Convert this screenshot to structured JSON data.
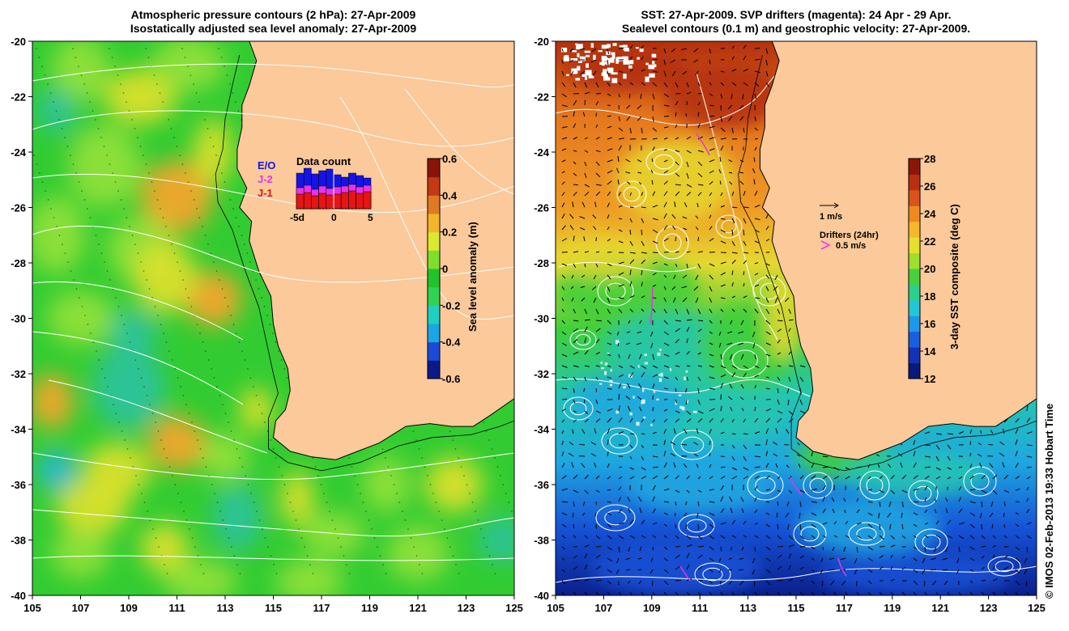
{
  "left_panel": {
    "title_line1": "Atmospheric pressure contours (2 hPa): 27-Apr-2009",
    "title_line2": "Isostatically adjusted sea level anomaly: 27-Apr-2009",
    "colorbar": {
      "label": "Sea level anomaly (m)",
      "ticks": [
        "0.6",
        "0.4",
        "0.2",
        "0",
        "-0.2",
        "-0.4",
        "-0.6"
      ],
      "colors": [
        "#0b1a8a",
        "#1a4ad8",
        "#19a7e6",
        "#1fd0c0",
        "#2fd455",
        "#22c32a",
        "#7fde2b",
        "#d8e92e",
        "#f3b52a",
        "#e07a22",
        "#c23a14",
        "#8a1408"
      ]
    },
    "data_count": {
      "title": "Data count",
      "legend": [
        "E/O",
        "J-2",
        "J-1"
      ],
      "legend_colors": [
        "#1414e6",
        "#e633e6",
        "#e61414"
      ],
      "xticks": [
        "-5d",
        "0",
        "5"
      ]
    },
    "ocean_colors": {
      "base": "#32cc32",
      "light": "#8fe03a",
      "yellow": "#d9e02d",
      "orange": "#f2a52a",
      "teal": "#2dc39a",
      "cyan": "#27b7d6"
    }
  },
  "right_panel": {
    "title_line1": "SST: 27-Apr-2009. SVP drifters (magenta): 24 Apr - 29 Apr.",
    "title_line2": "Sealevel contours (0.1 m) and geostrophic velocity: 27-Apr-2009.",
    "colorbar": {
      "label": "3-day SST composite (deg C)",
      "ticks": [
        "28",
        "26",
        "24",
        "22",
        "20",
        "18",
        "16",
        "14",
        "12"
      ],
      "colors": [
        "#0a1a7a",
        "#1232b8",
        "#1a5ee0",
        "#1c98e8",
        "#22c7d4",
        "#2bd08c",
        "#46d23e",
        "#9ddf2c",
        "#e6e02c",
        "#f4b82a",
        "#ee8a1e",
        "#d9531a",
        "#b8300f",
        "#8c1708"
      ]
    },
    "legend_velocity": "1 m/s",
    "legend_drifters_title": "Drifters (24hr)",
    "legend_drifters_scale": "0.5 m/s",
    "sst_colors": {
      "north": "#b3300f",
      "orange": "#e6781e",
      "yellow": "#e6d830",
      "green": "#3fcf3a",
      "teal": "#24c6b0",
      "cyan": "#1ea7e0",
      "blue": "#1652d6",
      "deep": "#0b1f8c"
    }
  },
  "axes": {
    "x_ticks": [
      "105",
      "107",
      "109",
      "111",
      "113",
      "115",
      "117",
      "119",
      "121",
      "123",
      "125"
    ],
    "y_ticks": [
      "-20",
      "-22",
      "-24",
      "-26",
      "-28",
      "-30",
      "-32",
      "-34",
      "-36",
      "-38",
      "-40"
    ],
    "lon_range": [
      105,
      125
    ],
    "lat_range": [
      -40,
      -20
    ]
  },
  "land_color": "#fbc99a",
  "credit": "© IMOS 02-Feb-2013 19:33 Hobart Time"
}
